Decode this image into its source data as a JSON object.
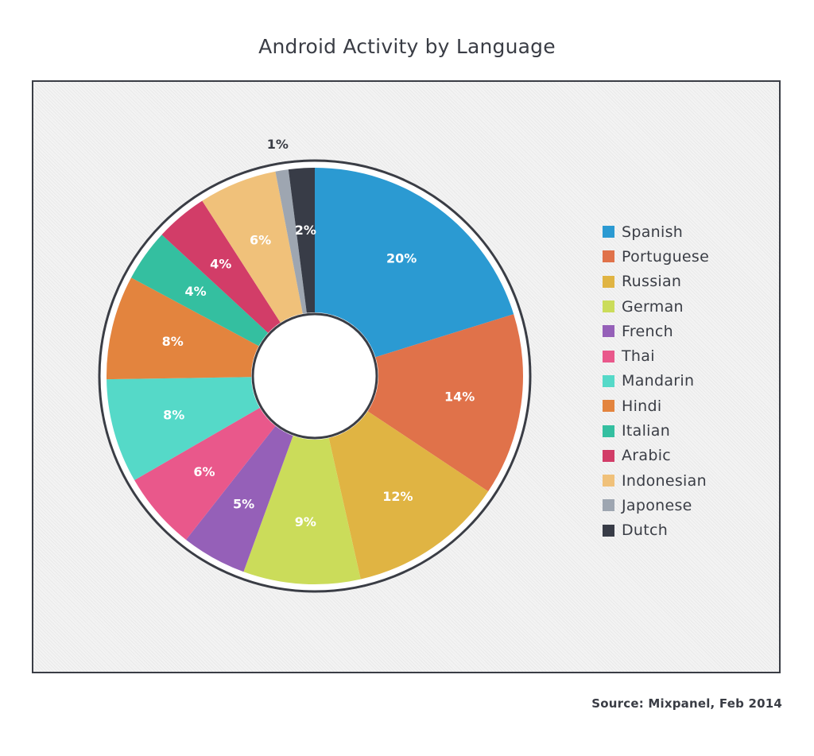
{
  "title": "Android Activity by Language",
  "source": "Source: Mixpanel, Feb 2014",
  "chart_data": {
    "type": "pie",
    "title": "Android Activity by Language",
    "categories": [
      "Spanish",
      "Portuguese",
      "Russian",
      "German",
      "French",
      "Thai",
      "Mandarin",
      "Hindi",
      "Italian",
      "Arabic",
      "Indonesian",
      "Japonese",
      "Dutch"
    ],
    "values": [
      20,
      14,
      12,
      9,
      5,
      6,
      8,
      8,
      4,
      4,
      6,
      1,
      2
    ],
    "labels": [
      "20%",
      "14%",
      "12%",
      "9%",
      "5%",
      "6%",
      "8%",
      "8%",
      "4%",
      "4%",
      "6%",
      "1%",
      "2%"
    ],
    "colors": [
      "#2b9ad2",
      "#e0724a",
      "#e0b443",
      "#cbdc5a",
      "#9560b8",
      "#e9588b",
      "#55d9c8",
      "#e3843e",
      "#34bfa0",
      "#d23d68",
      "#f0c17a",
      "#9ea6b1",
      "#383c47"
    ],
    "style": "donut",
    "legend_position": "right"
  }
}
